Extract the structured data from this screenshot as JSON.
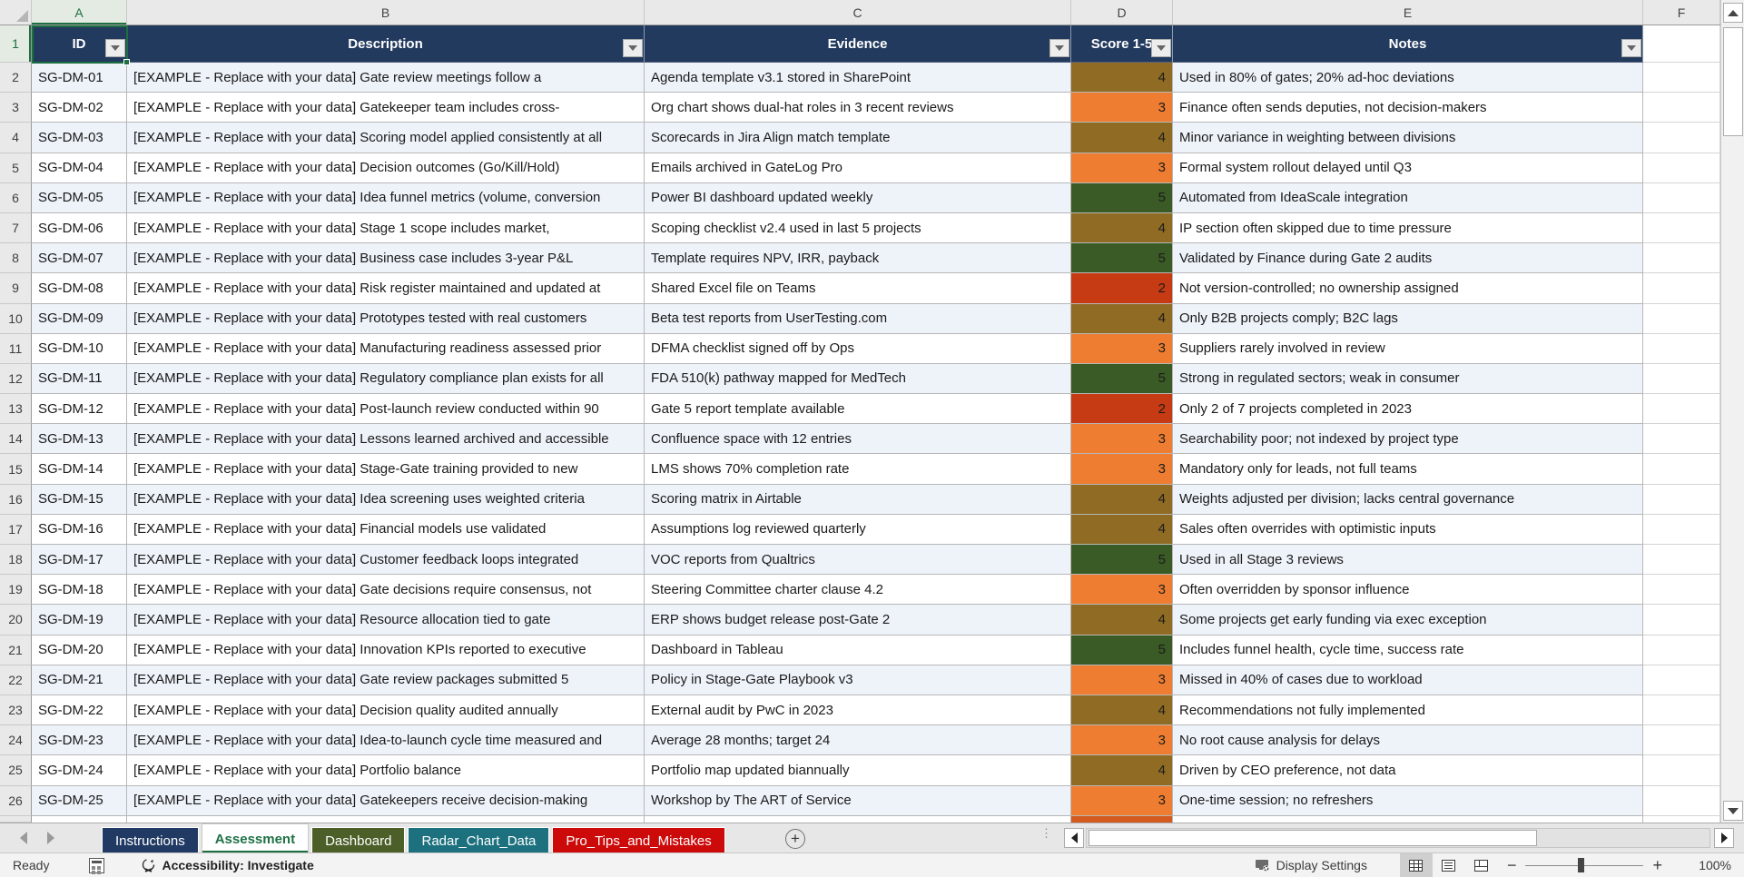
{
  "sheet": {
    "column_letters": [
      "A",
      "B",
      "C",
      "D",
      "E",
      "F"
    ],
    "selected_cell": "A1",
    "selected_column": "A",
    "selected_row_number": "1",
    "first_row_number": 2
  },
  "table": {
    "columns": [
      {
        "key": "id",
        "label": "ID"
      },
      {
        "key": "description",
        "label": "Description"
      },
      {
        "key": "evidence",
        "label": "Evidence"
      },
      {
        "key": "score",
        "label": "Score 1-5"
      },
      {
        "key": "notes",
        "label": "Notes"
      }
    ],
    "header_bg": "#223A5E",
    "banding_color": "#EEF3FA",
    "score_colors": {
      "2": "#C63A14",
      "3": "#EE7D31",
      "4": "#8F6B24",
      "5": "#3A5B25"
    },
    "rows": [
      {
        "id": "SG-DM-01",
        "description": "[EXAMPLE - Replace with your data] Gate review meetings follow a",
        "evidence": "Agenda template v3.1 stored in SharePoint",
        "score": "4",
        "notes": "Used in 80% of gates; 20% ad-hoc deviations"
      },
      {
        "id": "SG-DM-02",
        "description": "[EXAMPLE - Replace with your data] Gatekeeper team includes cross-",
        "evidence": "Org chart shows dual-hat roles in 3 recent reviews",
        "score": "3",
        "notes": "Finance often sends deputies, not decision-makers"
      },
      {
        "id": "SG-DM-03",
        "description": "[EXAMPLE - Replace with your data] Scoring model applied consistently at all",
        "evidence": "Scorecards in Jira Align match template",
        "score": "4",
        "notes": "Minor variance in weighting between divisions"
      },
      {
        "id": "SG-DM-04",
        "description": "[EXAMPLE - Replace with your data] Decision outcomes (Go/Kill/Hold)",
        "evidence": "Emails archived in GateLog Pro",
        "score": "3",
        "notes": "Formal system rollout delayed until Q3"
      },
      {
        "id": "SG-DM-05",
        "description": "[EXAMPLE - Replace with your data] Idea funnel metrics (volume, conversion",
        "evidence": "Power BI dashboard updated weekly",
        "score": "5",
        "notes": "Automated from IdeaScale integration"
      },
      {
        "id": "SG-DM-06",
        "description": "[EXAMPLE - Replace with your data] Stage 1 scope includes market,",
        "evidence": "Scoping checklist v2.4 used in last 5 projects",
        "score": "4",
        "notes": "IP section often skipped due to time pressure"
      },
      {
        "id": "SG-DM-07",
        "description": "[EXAMPLE - Replace with your data] Business case includes 3-year P&L",
        "evidence": "Template requires NPV, IRR, payback",
        "score": "5",
        "notes": "Validated by Finance during Gate 2 audits"
      },
      {
        "id": "SG-DM-08",
        "description": "[EXAMPLE - Replace with your data] Risk register maintained and updated at",
        "evidence": "Shared Excel file on Teams",
        "score": "2",
        "notes": "Not version-controlled; no ownership assigned"
      },
      {
        "id": "SG-DM-09",
        "description": "[EXAMPLE - Replace with your data] Prototypes tested with real customers",
        "evidence": "Beta test reports from UserTesting.com",
        "score": "4",
        "notes": "Only B2B projects comply; B2C lags"
      },
      {
        "id": "SG-DM-10",
        "description": "[EXAMPLE - Replace with your data] Manufacturing readiness assessed prior",
        "evidence": "DFMA checklist signed off by Ops",
        "score": "3",
        "notes": "Suppliers rarely involved in review"
      },
      {
        "id": "SG-DM-11",
        "description": "[EXAMPLE - Replace with your data] Regulatory compliance plan exists for all",
        "evidence": "FDA 510(k) pathway mapped for MedTech",
        "score": "5",
        "notes": "Strong in regulated sectors; weak in consumer"
      },
      {
        "id": "SG-DM-12",
        "description": "[EXAMPLE - Replace with your data] Post-launch review conducted within 90",
        "evidence": "Gate 5 report template available",
        "score": "2",
        "notes": "Only 2 of 7 projects completed in 2023"
      },
      {
        "id": "SG-DM-13",
        "description": "[EXAMPLE - Replace with your data] Lessons learned archived and accessible",
        "evidence": "Confluence space with 12 entries",
        "score": "3",
        "notes": "Searchability poor; not indexed by project type"
      },
      {
        "id": "SG-DM-14",
        "description": "[EXAMPLE - Replace with your data] Stage-Gate training provided to new",
        "evidence": "LMS shows 70% completion rate",
        "score": "3",
        "notes": "Mandatory only for leads, not full teams"
      },
      {
        "id": "SG-DM-15",
        "description": "[EXAMPLE - Replace with your data] Idea screening uses weighted criteria",
        "evidence": "Scoring matrix in Airtable",
        "score": "4",
        "notes": "Weights adjusted per division; lacks central governance"
      },
      {
        "id": "SG-DM-16",
        "description": "[EXAMPLE - Replace with your data] Financial models use validated",
        "evidence": "Assumptions log reviewed quarterly",
        "score": "4",
        "notes": "Sales often overrides with optimistic inputs"
      },
      {
        "id": "SG-DM-17",
        "description": "[EXAMPLE - Replace with your data] Customer feedback loops integrated",
        "evidence": "VOC reports from Qualtrics",
        "score": "5",
        "notes": "Used in all Stage 3 reviews"
      },
      {
        "id": "SG-DM-18",
        "description": "[EXAMPLE - Replace with your data] Gate decisions require consensus, not",
        "evidence": "Steering Committee charter clause 4.2",
        "score": "3",
        "notes": "Often overridden by sponsor influence"
      },
      {
        "id": "SG-DM-19",
        "description": "[EXAMPLE - Replace with your data] Resource allocation tied to gate",
        "evidence": "ERP shows budget release post-Gate 2",
        "score": "4",
        "notes": "Some projects get early funding via exec exception"
      },
      {
        "id": "SG-DM-20",
        "description": "[EXAMPLE - Replace with your data] Innovation KPIs reported to executive",
        "evidence": "Dashboard in Tableau",
        "score": "5",
        "notes": "Includes funnel health, cycle time, success rate"
      },
      {
        "id": "SG-DM-21",
        "description": "[EXAMPLE - Replace with your data] Gate review packages submitted 5",
        "evidence": "Policy in Stage-Gate Playbook v3",
        "score": "3",
        "notes": "Missed in 40% of cases due to workload"
      },
      {
        "id": "SG-DM-22",
        "description": "[EXAMPLE - Replace with your data] Decision quality audited annually",
        "evidence": "External audit by PwC in 2023",
        "score": "4",
        "notes": "Recommendations not fully implemented"
      },
      {
        "id": "SG-DM-23",
        "description": "[EXAMPLE - Replace with your data] Idea-to-launch cycle time measured and",
        "evidence": "Average 28 months; target 24",
        "score": "3",
        "notes": "No root cause analysis for delays"
      },
      {
        "id": "SG-DM-24",
        "description": "[EXAMPLE - Replace with your data] Portfolio balance",
        "evidence": "Portfolio map updated biannually",
        "score": "4",
        "notes": "Driven by CEO preference, not data"
      },
      {
        "id": "SG-DM-25",
        "description": "[EXAMPLE - Replace with your data] Gatekeepers receive decision-making",
        "evidence": "Workshop by The ART of Service",
        "score": "3",
        "notes": "One-time session; no refreshers"
      }
    ],
    "partial_row": {
      "score_color": "#D45A1D"
    }
  },
  "sheet_tabs": [
    {
      "label": "Instructions",
      "bg": "#203A64",
      "fg": "#FFFFFF",
      "active": false
    },
    {
      "label": "Assessment",
      "bg": "#FFFFFF",
      "fg": "#1E7145",
      "active": true
    },
    {
      "label": "Dashboard",
      "bg": "#4D5F28",
      "fg": "#FFFFFF",
      "active": false
    },
    {
      "label": "Radar_Chart_Data",
      "bg": "#1D717F",
      "fg": "#FFFFFF",
      "active": false
    },
    {
      "label": "Pro_Tips_and_Mistakes",
      "bg": "#CC0A0A",
      "fg": "#FFFFFF",
      "active": false
    }
  ],
  "status_bar": {
    "ready_label": "Ready",
    "accessibility_label": "Accessibility: Investigate",
    "display_settings_label": "Display Settings",
    "zoom_level": "100%"
  },
  "colors": {
    "selection_green": "#1D6F42",
    "gutter_bg": "#E9E9E9",
    "tabbar_bg": "#E7E7E7",
    "statusbar_bg": "#F3F3F3"
  }
}
